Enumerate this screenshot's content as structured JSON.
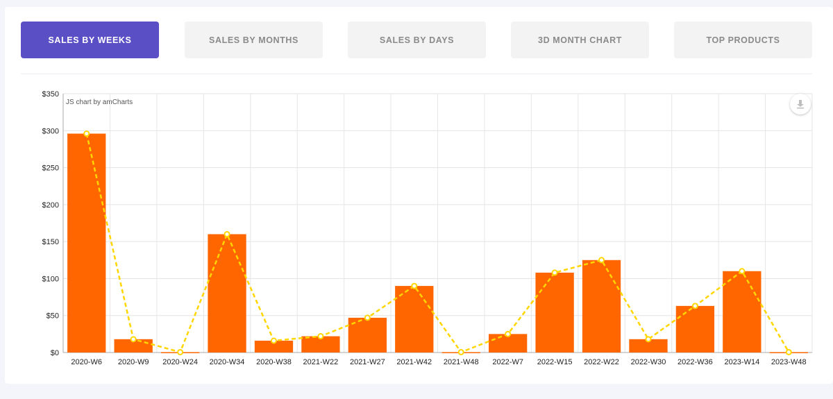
{
  "tabs": [
    {
      "label": "SALES BY WEEKS",
      "active": true
    },
    {
      "label": "SALES BY MONTHS",
      "active": false
    },
    {
      "label": "SALES BY DAYS",
      "active": false
    },
    {
      "label": "3D MONTH CHART",
      "active": false
    },
    {
      "label": "TOP PRODUCTS",
      "active": false
    }
  ],
  "credit": "JS chart by amCharts",
  "export_icon": "download-icon",
  "colors": {
    "accent": "#5b4fc6",
    "bar": "#ff6600",
    "line": "#ffd600"
  },
  "chart_data": {
    "type": "bar",
    "categories": [
      "2020-W6",
      "2020-W9",
      "2020-W24",
      "2020-W34",
      "2020-W38",
      "2021-W22",
      "2021-W27",
      "2021-W42",
      "2021-W48",
      "2022-W7",
      "2022-W15",
      "2022-W22",
      "2022-W30",
      "2022-W36",
      "2023-W14",
      "2023-W48"
    ],
    "series": [
      {
        "type": "bar",
        "values": [
          296,
          18,
          0.5,
          160,
          16,
          22,
          47,
          90,
          0.5,
          25,
          108,
          125,
          18,
          63,
          110,
          0.5
        ]
      },
      {
        "type": "line",
        "style": "dashed",
        "values": [
          296,
          18,
          0.5,
          160,
          16,
          22,
          47,
          90,
          0.5,
          25,
          108,
          125,
          18,
          63,
          110,
          0.5
        ]
      }
    ],
    "yticks": [
      "$0",
      "$50",
      "$100",
      "$150",
      "$200",
      "$250",
      "$300",
      "$350"
    ],
    "ylim": [
      0,
      350
    ],
    "grid": true,
    "title": "",
    "xlabel": "",
    "ylabel": ""
  }
}
